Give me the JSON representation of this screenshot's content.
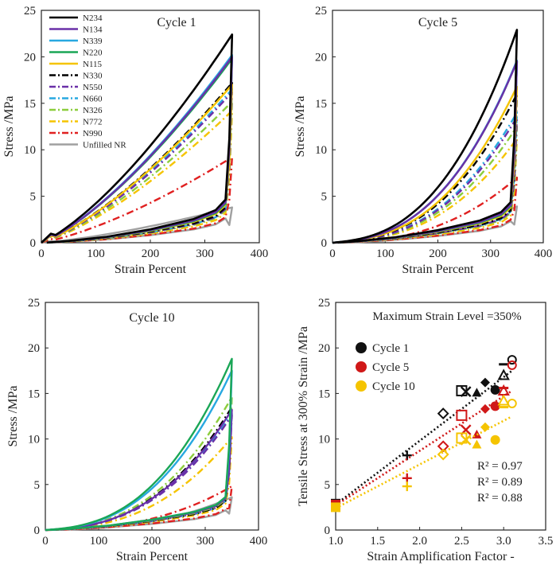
{
  "colors": {
    "N234": "#000000",
    "N134": "#6a30a8",
    "N339": "#28a8e0",
    "N220": "#1aa656",
    "N115": "#f5c400",
    "N330": "#000000",
    "N550": "#6a30a8",
    "N660": "#28a8e0",
    "N326": "#8ccd3c",
    "N772": "#f5c400",
    "N990": "#e02020",
    "Unfilled": "#a0a0a0",
    "cycle1": "#111111",
    "cycle5": "#d01818",
    "cycle10": "#f5c400"
  },
  "chart_data": [
    {
      "type": "line",
      "title": "Cycle 1",
      "xlabel": "Strain Percent",
      "ylabel": "Stress /MPa",
      "xlim": [
        0,
        400
      ],
      "ylim": [
        0,
        25
      ],
      "xticks": [
        "0",
        "100",
        "200",
        "300",
        "400"
      ],
      "yticks": [
        "0",
        "5",
        "10",
        "15",
        "20",
        "25"
      ],
      "legend": {
        "placement": "top-left",
        "entries": [
          "N234",
          "N134",
          "N339",
          "N220",
          "N115",
          "N330",
          "N550",
          "N660",
          "N326",
          "N772",
          "N990",
          "Unfilled NR"
        ]
      },
      "series": [
        {
          "name": "N234",
          "style": "solid",
          "peak": 22.4,
          "mid": 13.5,
          "unloadKnee": 3.2
        },
        {
          "name": "N134",
          "style": "solid",
          "peak": 20.0,
          "mid": 11.5,
          "unloadKnee": 3.0
        },
        {
          "name": "N339",
          "style": "solid",
          "peak": 20.2,
          "mid": 11.2,
          "unloadKnee": 3.0
        },
        {
          "name": "N220",
          "style": "solid",
          "peak": 19.8,
          "mid": 11.0,
          "unloadKnee": 2.9
        },
        {
          "name": "N115",
          "style": "solid",
          "peak": 17.0,
          "mid": 10.0,
          "unloadKnee": 2.8
        },
        {
          "name": "N330",
          "style": "dashdot",
          "peak": 17.2,
          "mid": 10.2,
          "unloadKnee": 2.6
        },
        {
          "name": "N550",
          "style": "dashdot",
          "peak": 16.2,
          "mid": 9.2,
          "unloadKnee": 2.5
        },
        {
          "name": "N660",
          "style": "dashdot",
          "peak": 16.5,
          "mid": 9.0,
          "unloadKnee": 2.5
        },
        {
          "name": "N326",
          "style": "dashdot",
          "peak": 15.2,
          "mid": 8.8,
          "unloadKnee": 2.4
        },
        {
          "name": "N772",
          "style": "dashdot",
          "peak": 14.2,
          "mid": 6.8,
          "unloadKnee": 2.2
        },
        {
          "name": "N990",
          "style": "dashdot",
          "peak": 9.2,
          "mid": 3.6,
          "unloadKnee": 1.9
        },
        {
          "name": "Unfilled NR",
          "style": "solid",
          "peak": 3.8,
          "mid": 1.6,
          "unloadKnee": 1.8
        }
      ]
    },
    {
      "type": "line",
      "title": "Cycle 5",
      "xlabel": "Strain Percent",
      "ylabel": "Stress /MPa",
      "xlim": [
        0,
        400
      ],
      "ylim": [
        0,
        25
      ],
      "xticks": [
        "0",
        "100",
        "200",
        "300",
        "400"
      ],
      "yticks": [
        "0",
        "5",
        "10",
        "15",
        "20",
        "25"
      ],
      "series": [
        {
          "name": "N234",
          "style": "solid",
          "peak": 22.9,
          "mid": 7.0,
          "unloadKnee": 3.0
        },
        {
          "name": "N134",
          "style": "solid",
          "peak": 19.5,
          "mid": 4.8,
          "unloadKnee": 2.8
        },
        {
          "name": "N339",
          "style": "solid",
          "peak": 19.6,
          "mid": 4.6,
          "unloadKnee": 2.8
        },
        {
          "name": "N220",
          "style": "solid",
          "peak": 19.5,
          "mid": 4.5,
          "unloadKnee": 2.7
        },
        {
          "name": "N115",
          "style": "solid",
          "peak": 16.8,
          "mid": 4.2,
          "unloadKnee": 2.6
        },
        {
          "name": "N330",
          "style": "dashdot",
          "peak": 16.0,
          "mid": 3.9,
          "unloadKnee": 2.4
        },
        {
          "name": "N550",
          "style": "dashdot",
          "peak": 13.5,
          "mid": 3.4,
          "unloadKnee": 2.3
        },
        {
          "name": "N660",
          "style": "dashdot",
          "peak": 14.0,
          "mid": 3.4,
          "unloadKnee": 2.3
        },
        {
          "name": "N326",
          "style": "dashdot",
          "peak": 12.5,
          "mid": 3.2,
          "unloadKnee": 2.2
        },
        {
          "name": "N772",
          "style": "dashdot",
          "peak": 11.2,
          "mid": 2.6,
          "unloadKnee": 2.0
        },
        {
          "name": "N990",
          "style": "dashdot",
          "peak": 7.0,
          "mid": 1.7,
          "unloadKnee": 1.7
        },
        {
          "name": "Unfilled NR",
          "style": "solid",
          "peak": 3.9,
          "mid": 1.5,
          "unloadKnee": 1.6
        }
      ]
    },
    {
      "type": "line",
      "title": "Cycle 10",
      "xlabel": "Strain Percent",
      "ylabel": "Stress /MPa",
      "xlim": [
        0,
        400
      ],
      "ylim": [
        0,
        25
      ],
      "xticks": [
        "0",
        "100",
        "200",
        "300",
        "400"
      ],
      "yticks": [
        "0",
        "5",
        "10",
        "15",
        "20",
        "25"
      ],
      "series": [
        {
          "name": "N220",
          "style": "solid",
          "peak": 18.8,
          "mid": 3.0,
          "unloadKnee": 2.5
        },
        {
          "name": "N339",
          "style": "solid",
          "peak": 17.5,
          "mid": 2.9,
          "unloadKnee": 2.5
        },
        {
          "name": "N134",
          "style": "solid",
          "peak": 13.2,
          "mid": 2.7,
          "unloadKnee": 2.4
        },
        {
          "name": "N326",
          "style": "dashdot",
          "peak": 14.6,
          "mid": 2.6,
          "unloadKnee": 2.3
        },
        {
          "name": "N330",
          "style": "dashdot",
          "peak": 13.5,
          "mid": 2.5,
          "unloadKnee": 2.2
        },
        {
          "name": "N550",
          "style": "dashdot",
          "peak": 12.6,
          "mid": 2.4,
          "unloadKnee": 2.2
        },
        {
          "name": "N660",
          "style": "dashdot",
          "peak": 12.8,
          "mid": 2.4,
          "unloadKnee": 2.2
        },
        {
          "name": "N772",
          "style": "dashdot",
          "peak": 10.2,
          "mid": 2.0,
          "unloadKnee": 2.0
        },
        {
          "name": "N990",
          "style": "dashdot",
          "peak": 4.8,
          "mid": 1.4,
          "unloadKnee": 1.6
        },
        {
          "name": "Unfilled NR",
          "style": "solid",
          "peak": 3.6,
          "mid": 1.3,
          "unloadKnee": 1.5
        }
      ]
    },
    {
      "type": "scatter",
      "title": "Maximum Strain Level =350%",
      "xlabel": "Strain Amplification Factor -",
      "ylabel": "Tensile Stress at 300% Strain /MPa",
      "xlim": [
        1.0,
        3.5
      ],
      "ylim": [
        0,
        25
      ],
      "xticks": [
        "1.0",
        "1.5",
        "2.0",
        "2.5",
        "3.0",
        "3.5"
      ],
      "yticks": [
        "0",
        "5",
        "10",
        "15",
        "20",
        "25"
      ],
      "legend": {
        "placement": "top-left",
        "entries": [
          "Cycle 1",
          "Cycle 5",
          "Cycle 10"
        ]
      },
      "r2_labels": [
        "R² = 0.97",
        "R² = 0.89",
        "R² = 0.88"
      ],
      "series": [
        {
          "name": "Cycle 1",
          "trendline": {
            "slope": 7.0,
            "intercept": -4.2
          },
          "points": [
            {
              "x": 1.0,
              "y": 2.9,
              "marker": "square"
            },
            {
              "x": 1.85,
              "y": 8.2,
              "marker": "plus"
            },
            {
              "x": 2.28,
              "y": 12.8,
              "marker": "diamond-open"
            },
            {
              "x": 2.5,
              "y": 15.3,
              "marker": "square-open"
            },
            {
              "x": 2.55,
              "y": 15.2,
              "marker": "cross"
            },
            {
              "x": 2.68,
              "y": 15.1,
              "marker": "triangle"
            },
            {
              "x": 2.78,
              "y": 16.2,
              "marker": "diamond"
            },
            {
              "x": 2.9,
              "y": 15.4,
              "marker": "circle"
            },
            {
              "x": 3.0,
              "y": 17.0,
              "marker": "triangle-open"
            },
            {
              "x": 3.0,
              "y": 18.2,
              "marker": "dash"
            },
            {
              "x": 3.1,
              "y": 18.7,
              "marker": "circle-open"
            }
          ]
        },
        {
          "name": "Cycle 5",
          "trendline": {
            "slope": 6.0,
            "intercept": -3.3
          },
          "points": [
            {
              "x": 1.0,
              "y": 2.8,
              "marker": "square"
            },
            {
              "x": 1.85,
              "y": 5.7,
              "marker": "plus"
            },
            {
              "x": 2.28,
              "y": 9.2,
              "marker": "diamond-open"
            },
            {
              "x": 2.5,
              "y": 12.6,
              "marker": "square-open"
            },
            {
              "x": 2.55,
              "y": 11.0,
              "marker": "cross"
            },
            {
              "x": 2.68,
              "y": 10.5,
              "marker": "triangle"
            },
            {
              "x": 2.78,
              "y": 13.3,
              "marker": "diamond"
            },
            {
              "x": 2.9,
              "y": 13.6,
              "marker": "circle"
            },
            {
              "x": 3.0,
              "y": 15.3,
              "marker": "triangle-open"
            },
            {
              "x": 3.0,
              "y": 15.6,
              "marker": "dash"
            },
            {
              "x": 3.1,
              "y": 18.1,
              "marker": "circle-open"
            }
          ]
        },
        {
          "name": "Cycle 10",
          "trendline": {
            "slope": 4.8,
            "intercept": -2.4
          },
          "points": [
            {
              "x": 1.0,
              "y": 2.5,
              "marker": "square"
            },
            {
              "x": 1.85,
              "y": 4.8,
              "marker": "plus"
            },
            {
              "x": 2.28,
              "y": 8.3,
              "marker": "diamond-open"
            },
            {
              "x": 2.5,
              "y": 10.1,
              "marker": "square-open"
            },
            {
              "x": 2.55,
              "y": 9.9,
              "marker": "cross"
            },
            {
              "x": 2.68,
              "y": 9.4,
              "marker": "triangle"
            },
            {
              "x": 2.78,
              "y": 11.3,
              "marker": "diamond"
            },
            {
              "x": 2.9,
              "y": 9.9,
              "marker": "circle"
            },
            {
              "x": 3.0,
              "y": 14.2,
              "marker": "triangle-open"
            },
            {
              "x": 3.0,
              "y": 13.5,
              "marker": "dash"
            },
            {
              "x": 3.1,
              "y": 13.9,
              "marker": "circle-open"
            }
          ]
        }
      ]
    }
  ]
}
